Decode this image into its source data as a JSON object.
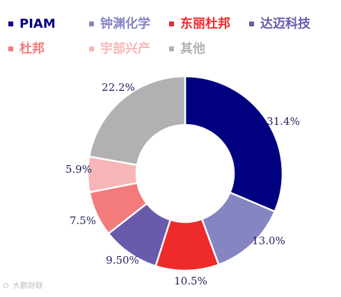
{
  "chart_data": {
    "type": "pie",
    "donut": true,
    "legend_position": "top",
    "categories": [
      "PIAM",
      "钟渊化学",
      "东丽杜邦",
      "达迈科技",
      "杜邦",
      "宇部兴产",
      "其他"
    ],
    "values": [
      31.4,
      13.0,
      10.5,
      9.5,
      7.5,
      5.9,
      22.2
    ],
    "data_labels": [
      "31.4%",
      "13.0%",
      "10.5%",
      "9.50%",
      "7.5%",
      "5.9%",
      "22.2%"
    ],
    "colors": [
      "#000080",
      "#8585c2",
      "#ee2a2a",
      "#6a5aac",
      "#f47b7b",
      "#f6b6b8",
      "#b1b0b3"
    ]
  },
  "watermark": "大鹏財联"
}
